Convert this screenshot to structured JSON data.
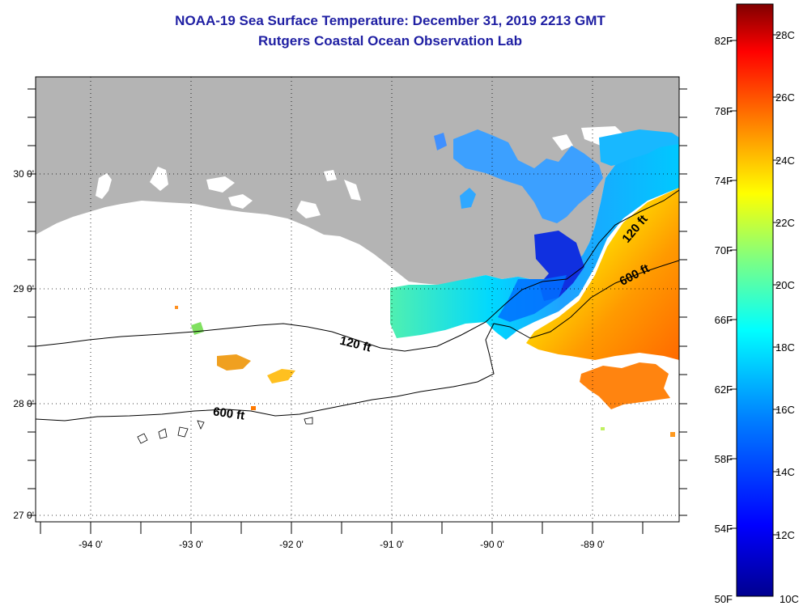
{
  "header": {
    "title": "NOAA-19 Sea Surface Temperature:  December 31, 2019 2213 GMT",
    "subtitle": "Rutgers Coastal Ocean Observation Lab"
  },
  "map": {
    "lat_labels": [
      "30 0'",
      "29 0'",
      "28 0'",
      "27 0'"
    ],
    "lon_labels": [
      "-94 0'",
      "-93 0'",
      "-92 0'",
      "-91 0'",
      "-90 0'",
      "-89 0'"
    ],
    "contour_labels": {
      "shelf_120": "120 ft",
      "shelf_600": "600 ft",
      "east_120": "120 ft",
      "east_600": "600 ft"
    },
    "land_color": "#b4b4b4",
    "no_data_color": "#ffffff"
  },
  "colorbar": {
    "fahrenheit_labels": [
      "82F",
      "78F",
      "74F",
      "70F",
      "66F",
      "62F",
      "58F",
      "54F",
      "50F"
    ],
    "celsius_labels": [
      "28C",
      "26C",
      "24C",
      "22C",
      "20C",
      "18C",
      "16C",
      "14C",
      "12C",
      "10C"
    ],
    "colors": [
      "#00008f",
      "#0000ff",
      "#0080ff",
      "#00ffff",
      "#80ff80",
      "#ffff00",
      "#ff8000",
      "#ff0000",
      "#800000"
    ]
  }
}
